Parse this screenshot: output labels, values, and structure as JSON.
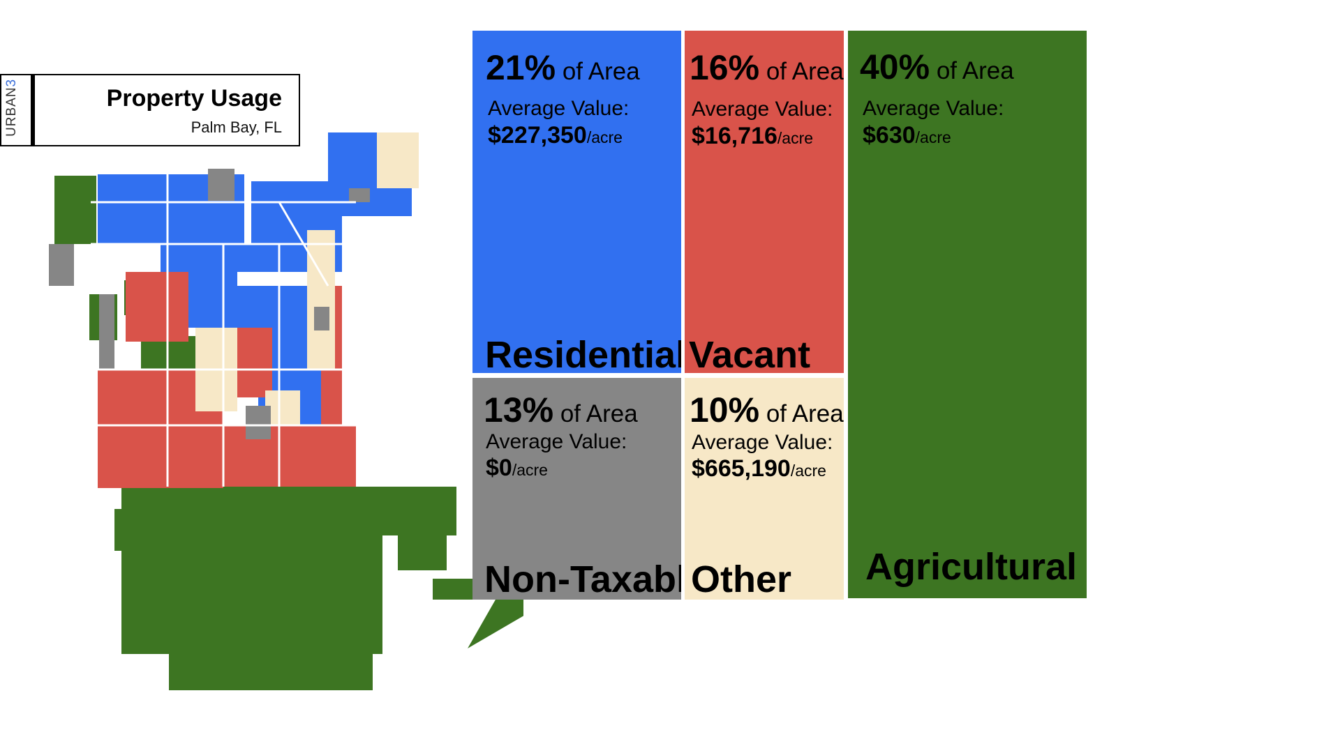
{
  "header": {
    "brand_text": "URBAN",
    "brand_accent": "3",
    "title": "Property Usage",
    "subtitle": "Palm Bay, FL"
  },
  "colors": {
    "residential": "#3170f0",
    "vacant": "#d9534a",
    "non_taxable": "#868686",
    "other": "#f7e8c7",
    "agricultural": "#3d7522"
  },
  "categories": [
    {
      "key": "residential",
      "name": "Residential",
      "pct": "21%",
      "of_area": "of Area",
      "avg_label": "Average Value:",
      "value": "$227,350",
      "unit": "/acre",
      "area_fraction": 0.21
    },
    {
      "key": "vacant",
      "name": "Vacant",
      "pct": "16%",
      "of_area": "of Area",
      "avg_label": "Average Value:",
      "value": "$16,716",
      "unit": "/acre",
      "area_fraction": 0.16
    },
    {
      "key": "agricultural",
      "name": "Agricultural",
      "pct": "40%",
      "of_area": "of Area",
      "avg_label": "Average Value:",
      "value": "$630",
      "unit": "/acre",
      "area_fraction": 0.4
    },
    {
      "key": "non_taxable",
      "name": "Non-Taxable",
      "pct": "13%",
      "of_area": "of Area",
      "avg_label": "Average Value:",
      "value": "$0",
      "unit": "/acre",
      "area_fraction": 0.13
    },
    {
      "key": "other",
      "name": "Other",
      "pct": "10%",
      "of_area": "of Area",
      "avg_label": "Average Value:",
      "value": "$665,190",
      "unit": "/acre",
      "area_fraction": 0.1
    }
  ]
}
